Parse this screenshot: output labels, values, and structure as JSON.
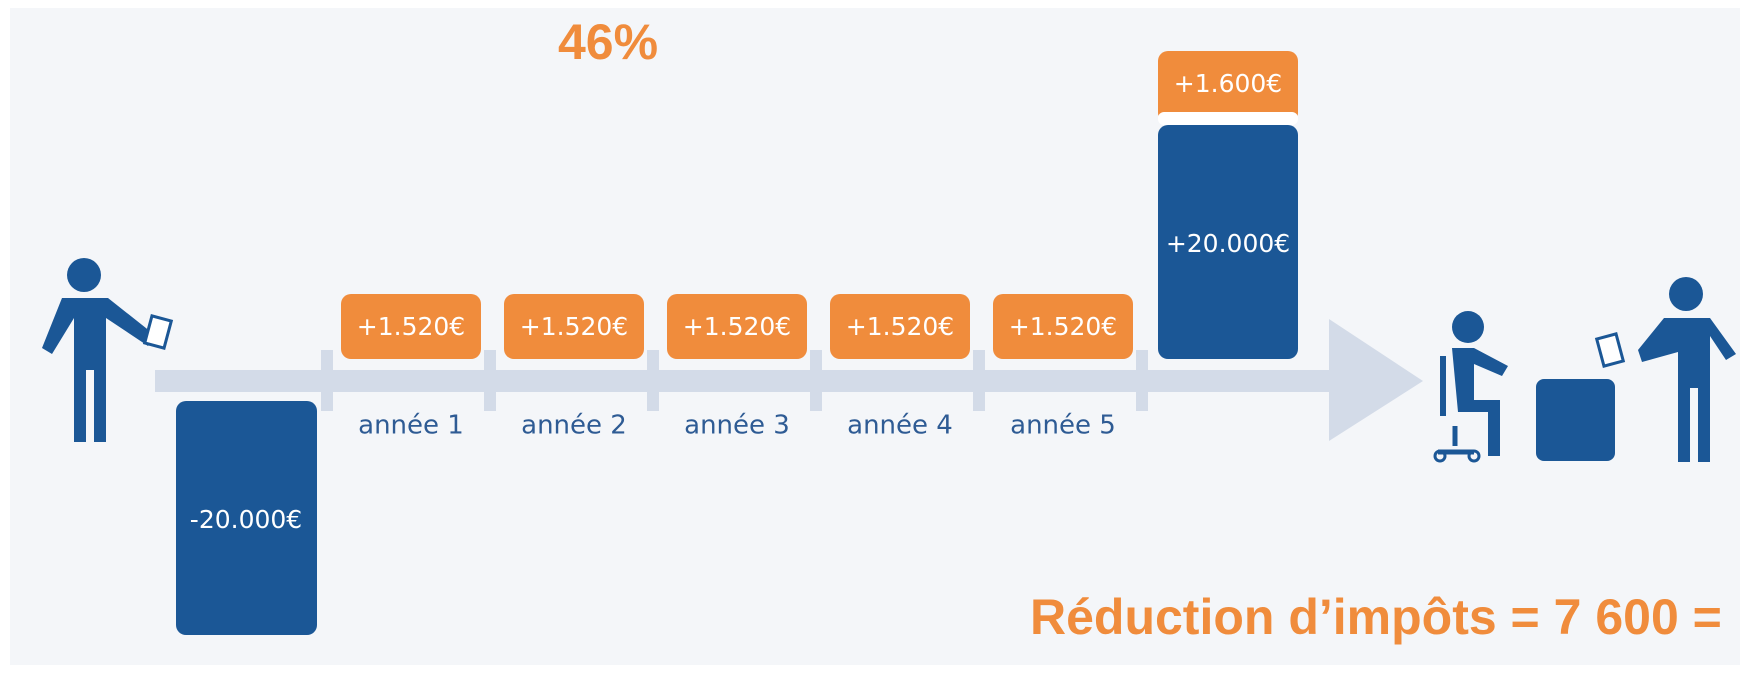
{
  "title": "46%",
  "initial": {
    "amount": "-20.000€"
  },
  "years": [
    {
      "label": "année 1",
      "amount": "+1.520€"
    },
    {
      "label": "année 2",
      "amount": "+1.520€"
    },
    {
      "label": "année 3",
      "amount": "+1.520€"
    },
    {
      "label": "année 4",
      "amount": "+1.520€"
    },
    {
      "label": "année 5",
      "amount": "+1.520€"
    }
  ],
  "final": {
    "capital": "+20.000€",
    "bonus": "+1.600€"
  },
  "footer": "Réduction d’impôts = 7 600 ="
}
